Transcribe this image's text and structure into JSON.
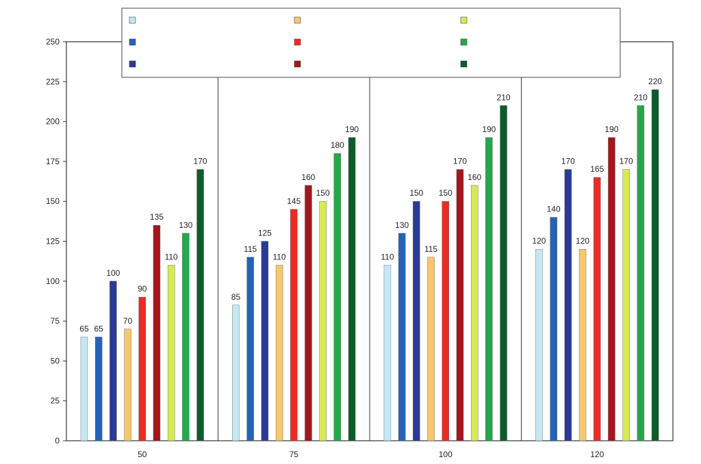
{
  "chart_data": {
    "type": "bar",
    "title": "",
    "xlabel": "",
    "ylabel": "",
    "ylim": [
      0,
      250
    ],
    "yticks": [
      0,
      25,
      50,
      75,
      100,
      125,
      150,
      175,
      200,
      225,
      250
    ],
    "categories": [
      "50",
      "75",
      "100",
      "120"
    ],
    "legend_position": "top",
    "series": [
      {
        "name": "",
        "color": "#c6e8f5",
        "values": [
          65,
          85,
          110,
          120
        ]
      },
      {
        "name": "",
        "color": "#2563b8",
        "values": [
          65,
          115,
          130,
          140
        ]
      },
      {
        "name": "",
        "color": "#2b3a97",
        "values": [
          100,
          125,
          150,
          170
        ]
      },
      {
        "name": "",
        "color": "#f6c76e",
        "values": [
          70,
          110,
          115,
          120
        ]
      },
      {
        "name": "",
        "color": "#ee2a24",
        "values": [
          90,
          145,
          150,
          165
        ]
      },
      {
        "name": "",
        "color": "#a5151b",
        "values": [
          135,
          160,
          170,
          190
        ]
      },
      {
        "name": "",
        "color": "#d7ea55",
        "values": [
          110,
          150,
          160,
          170
        ]
      },
      {
        "name": "",
        "color": "#23a84b",
        "values": [
          130,
          180,
          190,
          210
        ]
      },
      {
        "name": "",
        "color": "#0d5c2c",
        "values": [
          170,
          190,
          210,
          220
        ]
      }
    ]
  }
}
